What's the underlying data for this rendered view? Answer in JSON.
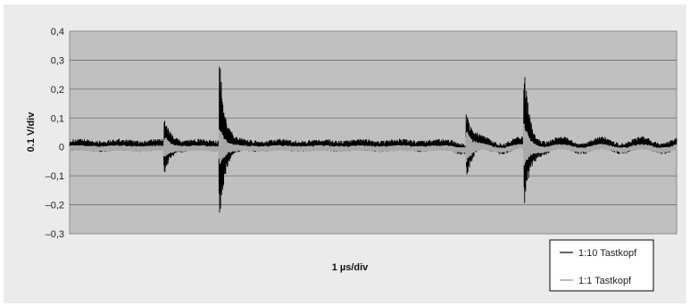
{
  "chart_data": {
    "type": "line",
    "title": "",
    "xlabel": "1 µs/div",
    "ylabel": "0.1 V/div",
    "ylim": [
      -0.3,
      0.4
    ],
    "yticks": [
      0.4,
      0.3,
      0.2,
      0.1,
      0,
      -0.1,
      -0.2,
      -0.3
    ],
    "ytick_labels": [
      "0,4",
      "0,3",
      "0,2",
      "0,1",
      "0",
      "–0,1",
      "–0,2",
      "–0,3"
    ],
    "x_range_us": [
      0,
      10
    ],
    "grid": "horizontal",
    "plot_background": "#c0c0c0",
    "legend_position": "bottom-right",
    "series": [
      {
        "name": "1:10 Tastkopf",
        "color": "#000000",
        "baseline": 0.005,
        "noise_amplitude": 0.02,
        "events": [
          {
            "x": 1.57,
            "peak_max": 0.09,
            "peak_min": -0.08
          },
          {
            "x": 2.48,
            "peak_max": 0.27,
            "peak_min": -0.23
          },
          {
            "x": 6.55,
            "peak_max": 0.11,
            "peak_min": -0.09
          },
          {
            "x": 7.5,
            "peak_max": 0.24,
            "peak_min": -0.21
          }
        ]
      },
      {
        "name": "1:1 Tastkopf",
        "color": "#a9a9a9",
        "baseline": -0.005,
        "noise_amplitude": 0.01,
        "events": [
          {
            "x": 1.57,
            "peak_max": 0.03,
            "peak_min": -0.03
          },
          {
            "x": 2.48,
            "peak_max": 0.06,
            "peak_min": -0.05
          },
          {
            "x": 6.55,
            "peak_max": 0.05,
            "peak_min": -0.04
          },
          {
            "x": 7.5,
            "peak_max": 0.07,
            "peak_min": -0.06
          }
        ]
      }
    ]
  }
}
